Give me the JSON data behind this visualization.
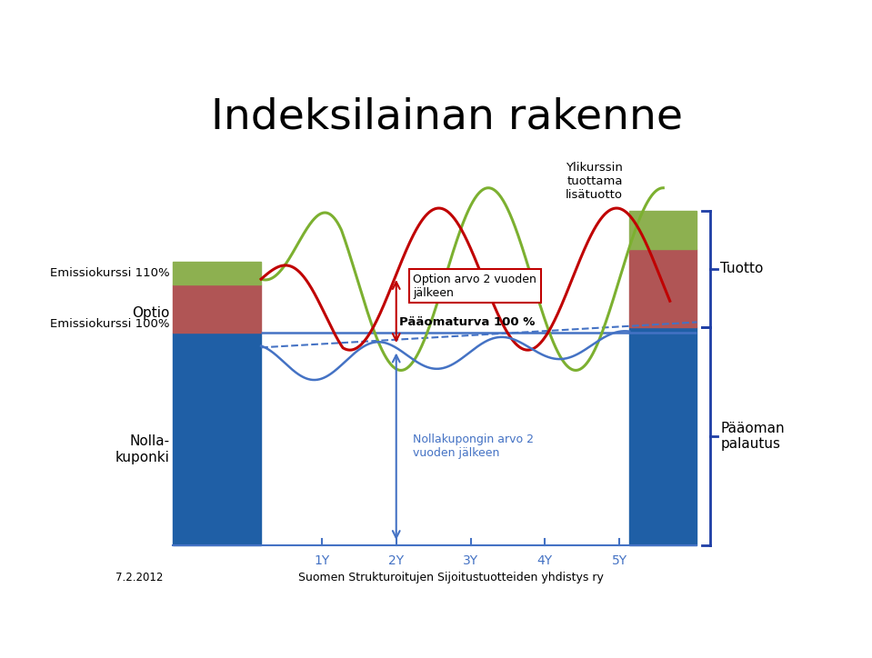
{
  "title": "Indeksilainan rakenne",
  "title_fontsize": 34,
  "background_color": "#ffffff",
  "bar_blue_color": "#1F5FA6",
  "bar_red_color": "#B05555",
  "bar_green_color": "#8DB050",
  "line_100_color": "#4472C4",
  "line_100_lw": 1.8,
  "dashed_line_color": "#4472C4",
  "dashed_line_lw": 1.5,
  "green_line_color": "#7CB030",
  "green_line_lw": 2.2,
  "red_line_color": "#C00000",
  "red_line_lw": 2.2,
  "blue_wavy_color": "#4472C4",
  "blue_wavy_lw": 1.8,
  "bracket_color": "#1F3FA6",
  "label_emissiokurssi_110": "Emissiokurssi 110%",
  "label_emissiokurssi_100": "Emissiokurssi 100%",
  "label_optio": "Optio",
  "label_nolla": "Nolla-\nkuponki",
  "label_paaoturva": "Pääomaturva 100 %",
  "label_option_arvo": "Option arvo 2 vuoden\njälkeen",
  "label_nolla_arvo": "Nollakupongin arvo 2\nvuoden jälkeen",
  "label_ylikurssin": "Ylikurssin\ntuottama\nlisätuotto",
  "label_tuotto": "Tuotto",
  "label_paaoman": "Pääoman\npalautus",
  "label_date": "7.2.2012",
  "label_footer": "Suomen Strukturoitujen Sijoitustuotteiden yhdistys ry",
  "x_ticks": [
    "1Y",
    "2Y",
    "3Y",
    "4Y",
    "5Y"
  ],
  "tick_color": "#4472C4"
}
